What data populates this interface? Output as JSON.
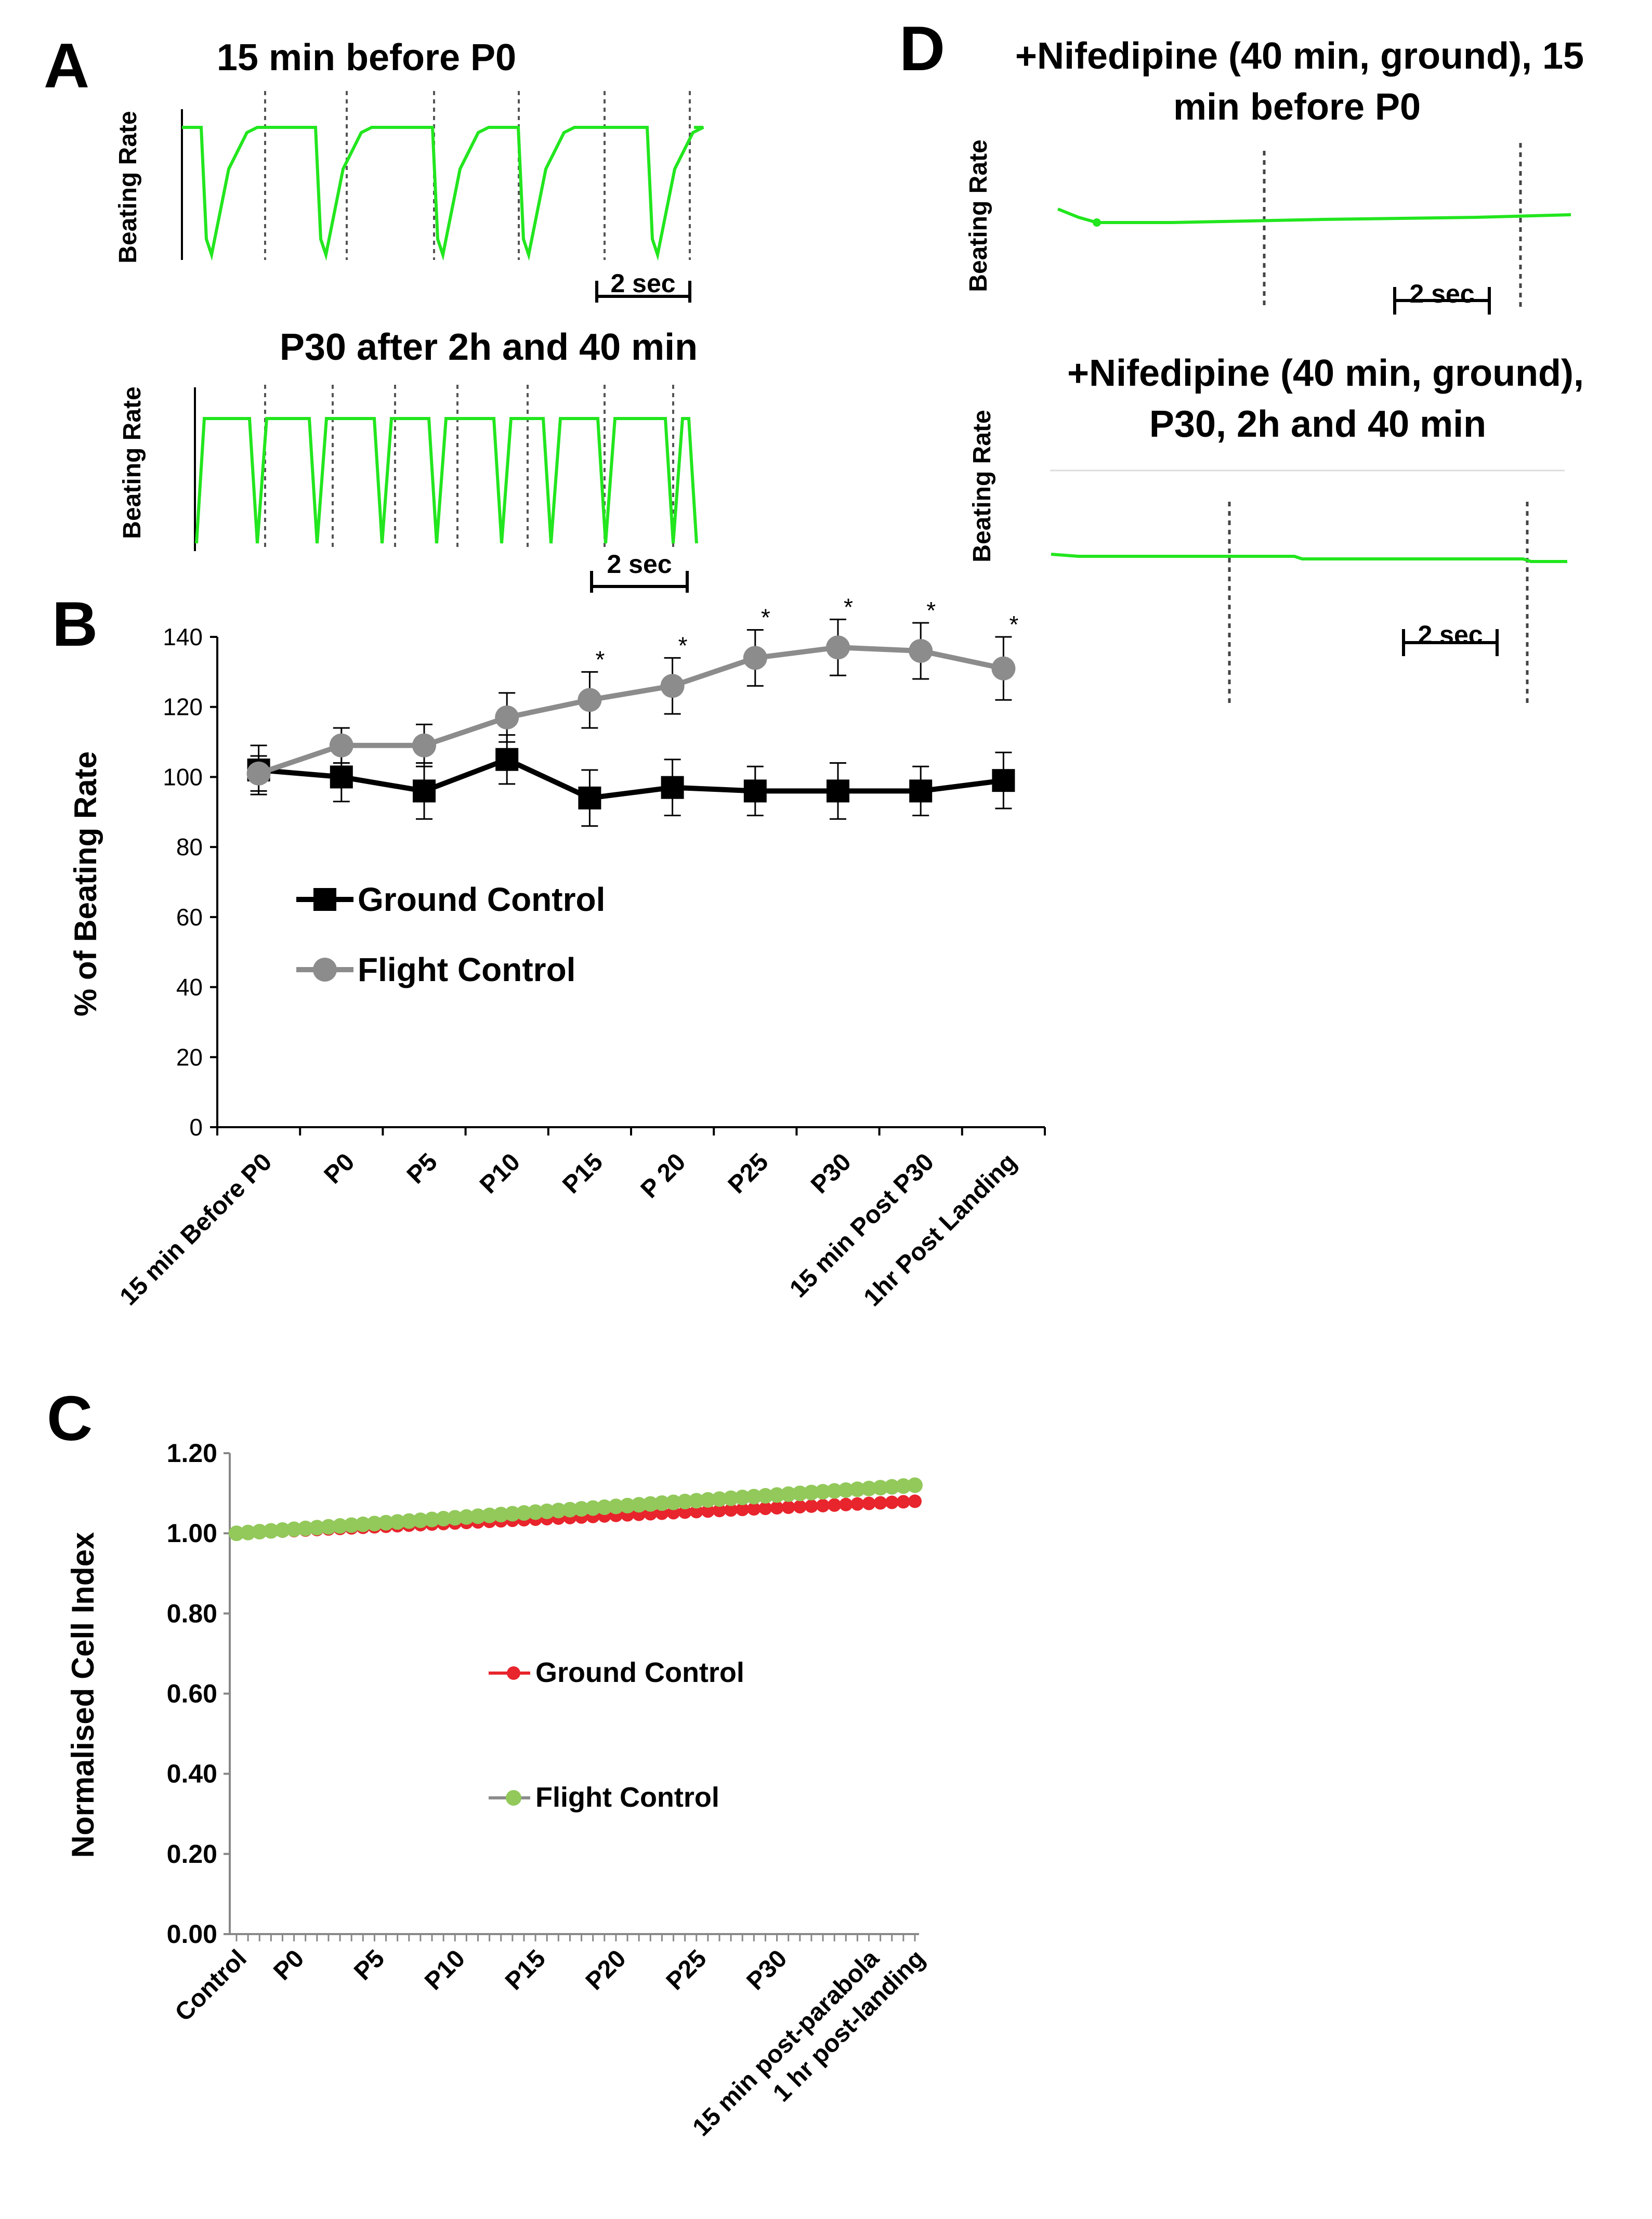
{
  "panels": {
    "A": {
      "letter": "A",
      "trace1_title": "15 min before P0",
      "trace2_title": "P30 after 2h and 40 min",
      "ylabel": "Beating Rate",
      "scale_label": "2 sec"
    },
    "B": {
      "letter": "B",
      "legend_ground": "Ground Control",
      "legend_flight": "Flight Control"
    },
    "C": {
      "letter": "C",
      "legend_ground": "Ground Control",
      "legend_flight": "Flight Control"
    },
    "D": {
      "letter": "D",
      "trace1_title_line1": "+Nifedipine (40 min, ground), 15",
      "trace1_title_line2": "min before P0",
      "trace2_title_line1": "+Nifedipine (40 min, ground),",
      "trace2_title_line2": "P30, 2h and 40 min",
      "ylabel": "Beating Rate",
      "scale_label": "2 sec"
    }
  },
  "colors": {
    "trace_green": "#22e61e",
    "ground_black": "#000000",
    "flight_gray": "#8c8c8c",
    "ground_red": "#e8242c",
    "flight_green": "#92c95a"
  },
  "chart_data": [
    {
      "id": "B",
      "type": "line",
      "title": "",
      "xlabel": "",
      "ylabel": "% of Beating Rate",
      "ylim": [
        0,
        140
      ],
      "yticks": [
        0,
        20,
        40,
        60,
        80,
        100,
        120,
        140
      ],
      "categories": [
        "15 min Before P0",
        "P0",
        "P5",
        "P10",
        "P15",
        "P 20",
        "P25",
        "P30",
        "15 min Post P30",
        "1hr Post Landing"
      ],
      "series": [
        {
          "name": "Ground Control",
          "marker": "square",
          "values": [
            102,
            100,
            96,
            105,
            94,
            97,
            96,
            96,
            96,
            99
          ],
          "errors": [
            7,
            7,
            8,
            7,
            8,
            8,
            7,
            8,
            7,
            8
          ]
        },
        {
          "name": "Flight Control",
          "marker": "circle",
          "values": [
            101,
            109,
            109,
            117,
            122,
            126,
            134,
            137,
            136,
            131
          ],
          "errors": [
            5,
            5,
            6,
            7,
            8,
            8,
            8,
            8,
            8,
            9
          ]
        }
      ],
      "significance": [
        "",
        "",
        "",
        "",
        "*",
        "*",
        "*",
        "*",
        "*",
        "*"
      ]
    },
    {
      "id": "C",
      "type": "line",
      "title": "",
      "xlabel": "",
      "ylabel": "Normalised Cell Index",
      "ylim": [
        0,
        1.2
      ],
      "yticks": [
        "0.00",
        "0.20",
        "0.40",
        "0.60",
        "0.80",
        "1.00",
        "1.20"
      ],
      "points_count": 60,
      "category_labels": [
        "Control",
        "P0",
        "P5",
        "P10",
        "P15",
        "P20",
        "P25",
        "P30",
        "15 min post-parabola",
        "1 hr post-landing"
      ],
      "series": [
        {
          "name": "Ground Control",
          "start": 1.0,
          "end": 1.08
        },
        {
          "name": "Flight Control",
          "start": 1.0,
          "end": 1.12
        }
      ]
    }
  ]
}
